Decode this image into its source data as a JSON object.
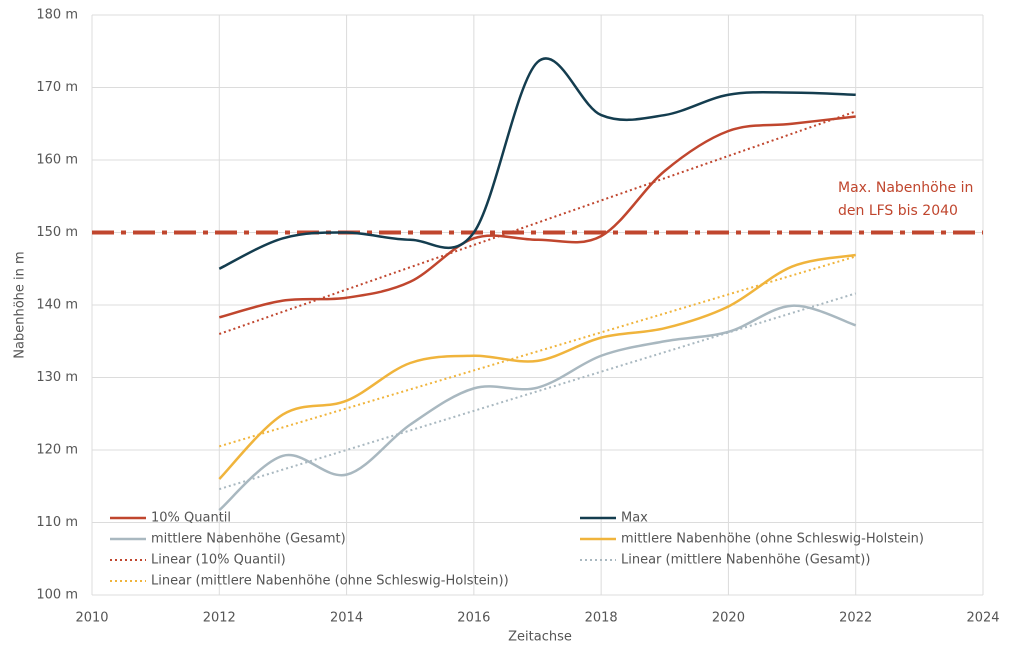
{
  "chart_data": {
    "type": "line",
    "x_label": "Zeitachse",
    "y_label": "Nabenhöhe in m",
    "xlim": [
      2010,
      2024
    ],
    "xticks": [
      2010,
      2012,
      2014,
      2016,
      2018,
      2020,
      2022,
      2024
    ],
    "ylim": [
      100,
      180
    ],
    "yticks": [
      {
        "value": 100,
        "label": "100 m"
      },
      {
        "value": 110,
        "label": "110 m"
      },
      {
        "value": 120,
        "label": "120 m"
      },
      {
        "value": 130,
        "label": "130 m"
      },
      {
        "value": 140,
        "label": "140 m"
      },
      {
        "value": 150,
        "label": "150 m"
      },
      {
        "value": 160,
        "label": "160 m"
      },
      {
        "value": 170,
        "label": "170 m"
      },
      {
        "value": 180,
        "label": "180 m"
      }
    ],
    "grid": true,
    "legend": "bottom",
    "reference_line": {
      "value": 150,
      "color": "#c0462e",
      "label": [
        "Max. Nabenhöhe in",
        "den LFS bis 2040"
      ]
    },
    "series": [
      {
        "name": "10% Quantil",
        "color": "#c0462e",
        "style": "solid",
        "x": [
          2012,
          2013,
          2014,
          2015,
          2016,
          2017,
          2018,
          2019,
          2020,
          2021,
          2022
        ],
        "values": [
          138.3,
          140.6,
          141,
          143.2,
          149.2,
          149,
          149.5,
          158.5,
          164,
          165,
          166
        ]
      },
      {
        "name": "Max",
        "color": "#143d4f",
        "style": "solid",
        "x": [
          2012,
          2013,
          2014,
          2015,
          2016,
          2017,
          2018,
          2019,
          2020,
          2021,
          2022
        ],
        "values": [
          145,
          149.2,
          150,
          149,
          150,
          173.5,
          166.2,
          166.2,
          169,
          169.3,
          169
        ]
      },
      {
        "name": "mittlere Nabenhöhe (Gesamt)",
        "color": "#a9b8c0",
        "style": "solid",
        "x": [
          2012,
          2013,
          2014,
          2015,
          2016,
          2017,
          2018,
          2019,
          2020,
          2021,
          2022
        ],
        "values": [
          111.7,
          119.2,
          116.6,
          123.5,
          128.5,
          128.6,
          133,
          135,
          136.3,
          139.9,
          137.2
        ]
      },
      {
        "name": "mittlere Nabenhöhe (ohne Schleswig-Holstein)",
        "color": "#f0b43c",
        "style": "solid",
        "x": [
          2012,
          2013,
          2014,
          2015,
          2016,
          2017,
          2018,
          2019,
          2020,
          2021,
          2022
        ],
        "values": [
          116,
          124.9,
          126.8,
          132,
          133,
          132.3,
          135.5,
          136.8,
          139.8,
          145.3,
          146.9
        ]
      },
      {
        "name": "Linear (10% Quantil)",
        "color": "#c0462e",
        "style": "dotted",
        "x": [
          2012,
          2022
        ],
        "values": [
          136,
          166.7
        ]
      },
      {
        "name": "Linear (mittlere Nabenhöhe (Gesamt))",
        "color": "#a9b8c0",
        "style": "dotted",
        "x": [
          2012,
          2022
        ],
        "values": [
          114.6,
          141.6
        ]
      },
      {
        "name": "Linear (mittlere Nabenhöhe (ohne Schleswig-Holstein))",
        "color": "#f0b43c",
        "style": "dotted",
        "x": [
          2012,
          2022
        ],
        "values": [
          120.5,
          146.7
        ]
      }
    ]
  }
}
